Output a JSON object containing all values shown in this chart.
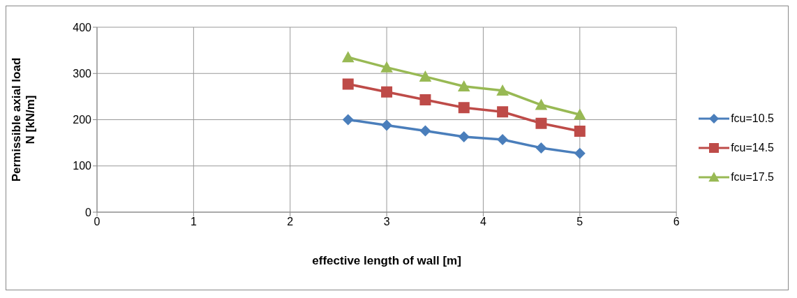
{
  "chart_data": {
    "type": "line",
    "xlabel": "effective length of wall [m]",
    "ylabel": "Permissible  axial load N [kN/m]",
    "x": [
      2.6,
      3.0,
      3.4,
      3.8,
      4.2,
      4.6,
      5.0
    ],
    "series": [
      {
        "name": "fcu=10.5",
        "color": "#4a7ebb",
        "marker": "diamond",
        "values": [
          200,
          188,
          176,
          163,
          157,
          139,
          127
        ]
      },
      {
        "name": "fcu=14.5",
        "color": "#be4b48",
        "marker": "square",
        "values": [
          277,
          260,
          243,
          226,
          217,
          192,
          175
        ]
      },
      {
        "name": "fcu=17.5",
        "color": "#98b954",
        "marker": "triangle",
        "values": [
          335,
          313,
          293,
          272,
          263,
          232,
          211
        ]
      }
    ],
    "xlim": [
      0,
      6
    ],
    "xticks": [
      0,
      1,
      2,
      3,
      4,
      5,
      6
    ],
    "ylim": [
      0,
      400
    ],
    "yticks": [
      0,
      100,
      200,
      300,
      400
    ],
    "grid": true,
    "legend": "right",
    "line_style": "solid"
  }
}
